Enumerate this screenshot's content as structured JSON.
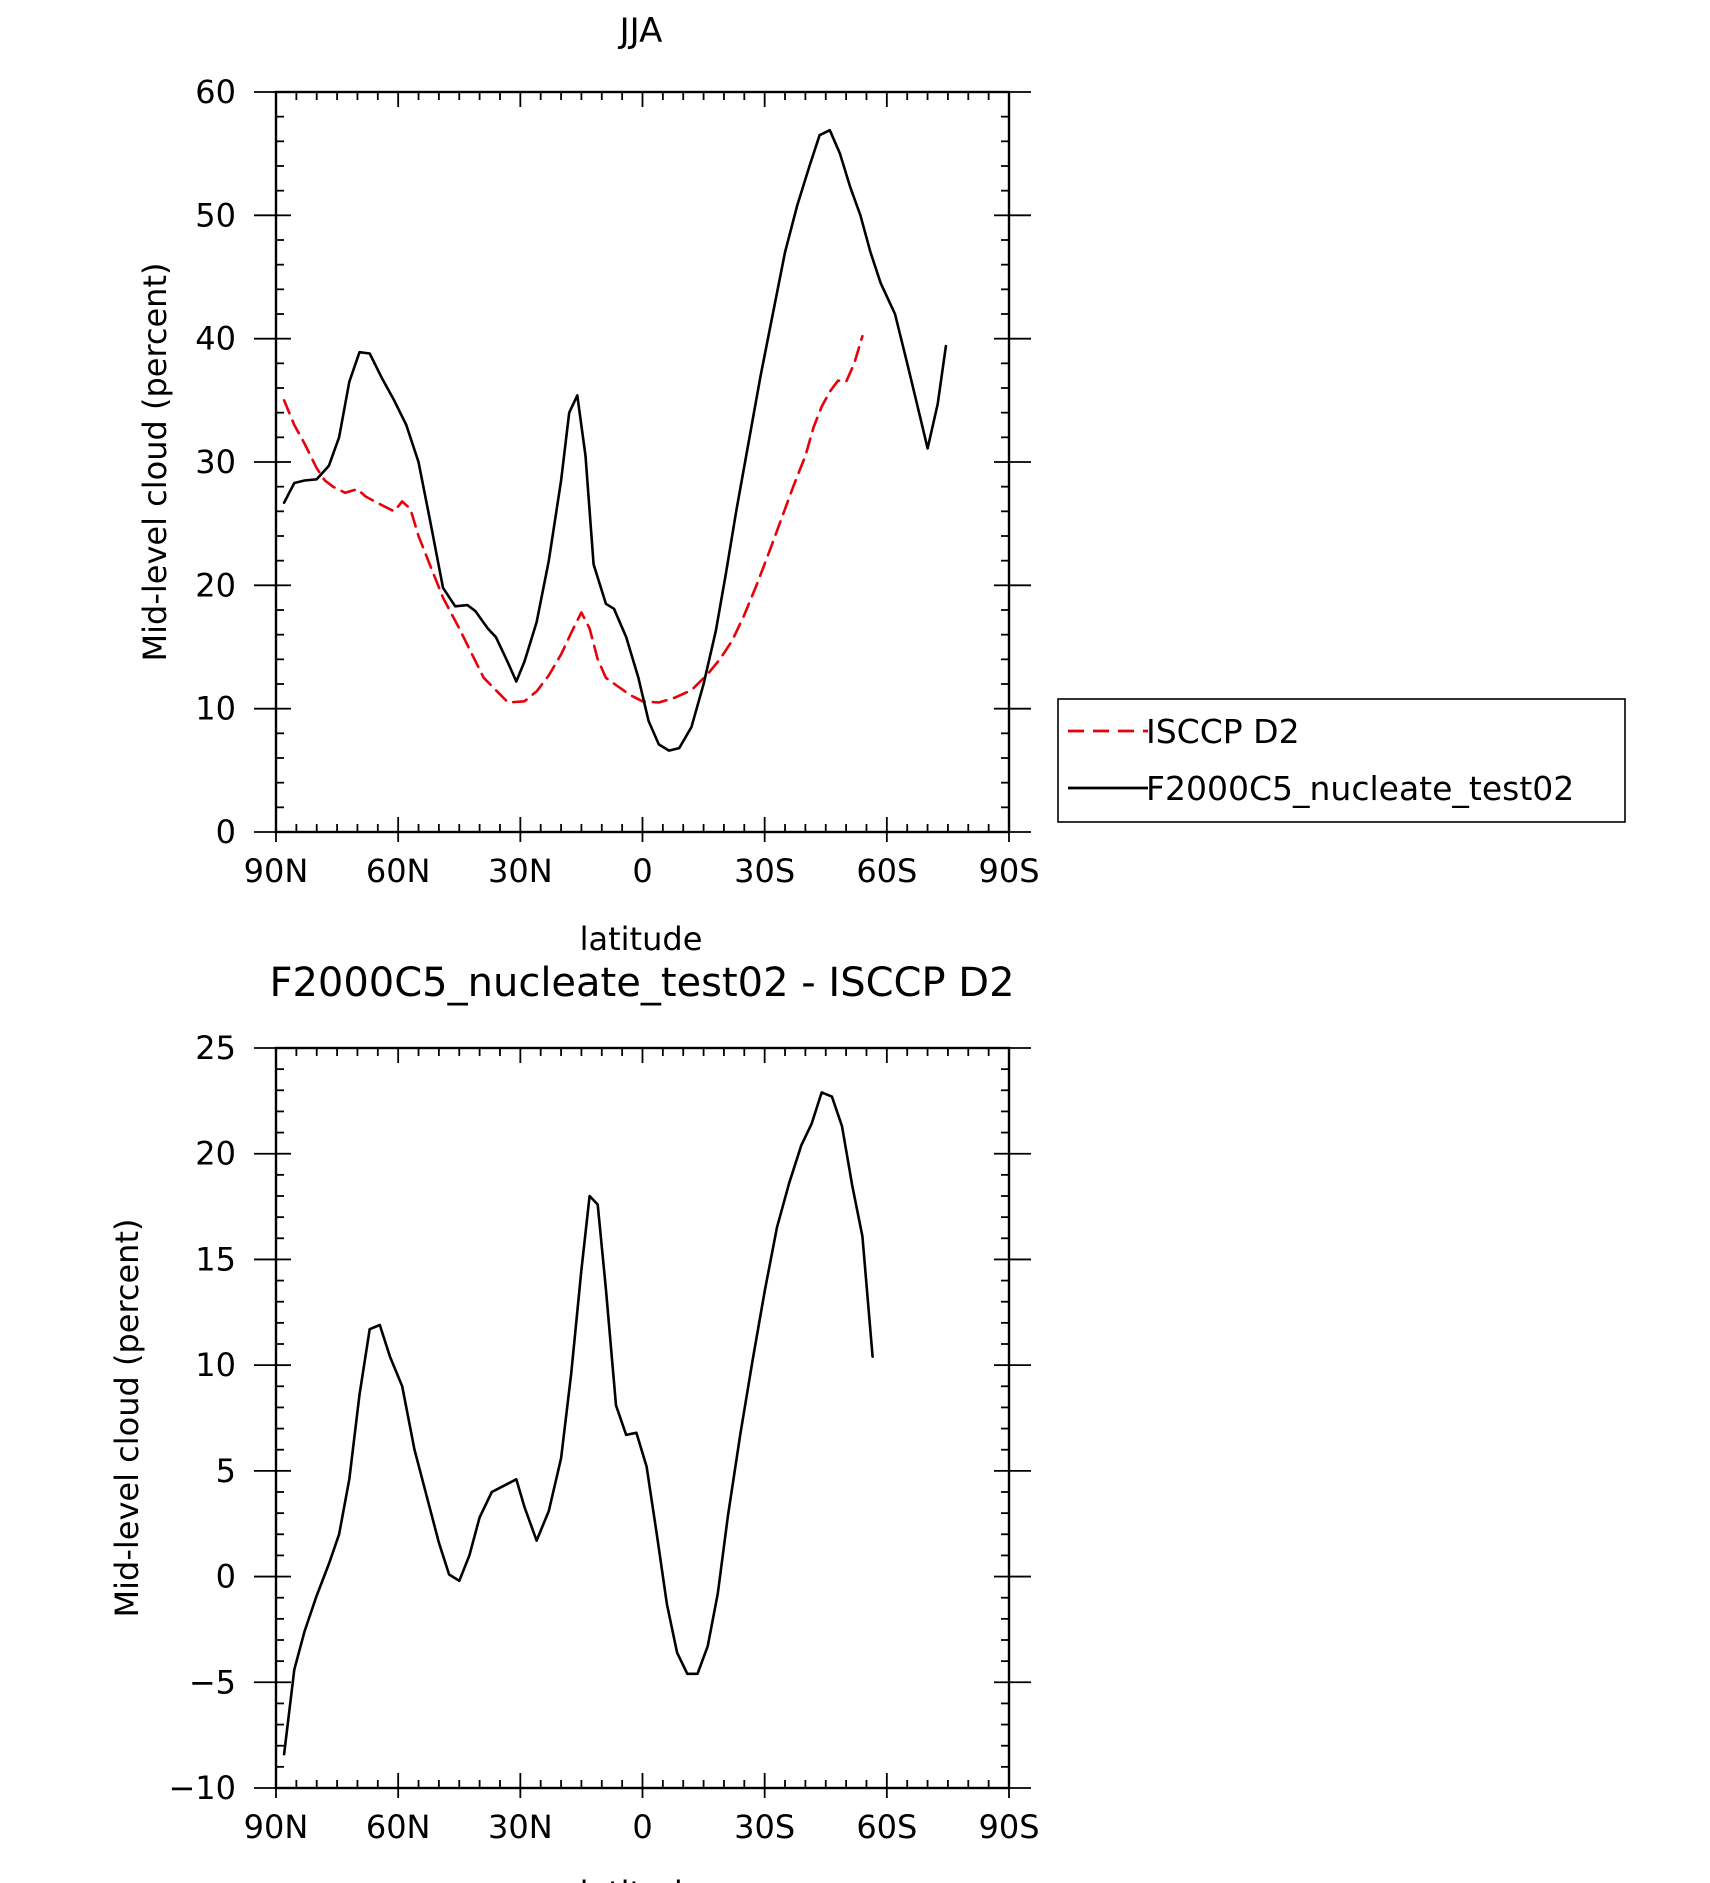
{
  "chart_data": [
    {
      "type": "line",
      "title": "JJA",
      "xlabel": "latitude",
      "ylabel": "Mid-level cloud (percent)",
      "xlim": [
        90,
        -90
      ],
      "ylim": [
        0,
        60
      ],
      "x_ticks": [
        90,
        60,
        30,
        0,
        -30,
        -60,
        -90
      ],
      "x_tick_labels": [
        "90N",
        "60N",
        "30N",
        "0",
        "30S",
        "60S",
        "90S"
      ],
      "y_ticks": [
        0,
        10,
        20,
        30,
        40,
        50,
        60
      ],
      "y_tick_labels": [
        "0",
        "10",
        "20",
        "30",
        "40",
        "50",
        "60"
      ],
      "grid": false,
      "legend": "right",
      "series": [
        {
          "name": "ISCCP D2",
          "color": "#e8000b",
          "dash": true,
          "points": [
            [
              88,
              35
            ],
            [
              85.5,
              33
            ],
            [
              83,
              31.5
            ],
            [
              80,
              29.5
            ],
            [
              78,
              28.5
            ],
            [
              76,
              28
            ],
            [
              73,
              27.5
            ],
            [
              70,
              27.8
            ],
            [
              68,
              27.2
            ],
            [
              64,
              26.5
            ],
            [
              61,
              26
            ],
            [
              59,
              26.8
            ],
            [
              57,
              26.2
            ],
            [
              55,
              24
            ],
            [
              52,
              21.5
            ],
            [
              49,
              19
            ],
            [
              45,
              16.5
            ],
            [
              42,
              14.5
            ],
            [
              39,
              12.5
            ],
            [
              36,
              11.5
            ],
            [
              33,
              10.5
            ],
            [
              29,
              10.6
            ],
            [
              26,
              11.4
            ],
            [
              23,
              12.7
            ],
            [
              20,
              14.4
            ],
            [
              17,
              16.5
            ],
            [
              15,
              17.8
            ],
            [
              13,
              16.5
            ],
            [
              11,
              14
            ],
            [
              9,
              12.5
            ],
            [
              6,
              11.8
            ],
            [
              3,
              11.1
            ],
            [
              0,
              10.6
            ],
            [
              -4,
              10.5
            ],
            [
              -8,
              10.9
            ],
            [
              -12,
              11.5
            ],
            [
              -16,
              12.8
            ],
            [
              -19,
              14
            ],
            [
              -22,
              15.5
            ],
            [
              -25,
              17.6
            ],
            [
              -28,
              20
            ],
            [
              -31,
              22.6
            ],
            [
              -34,
              25.3
            ],
            [
              -37,
              28
            ],
            [
              -40,
              30.5
            ],
            [
              -42,
              32.8
            ],
            [
              -44,
              34.5
            ],
            [
              -46,
              35.7
            ],
            [
              -48,
              36.6
            ],
            [
              -50,
              36.5
            ],
            [
              -52,
              38
            ],
            [
              -54,
              40.2
            ]
          ]
        },
        {
          "name": "F2000C5_nucleate_test02",
          "color": "#000000",
          "dash": false,
          "points": [
            [
              88,
              26.7
            ],
            [
              85.5,
              28.3
            ],
            [
              83,
              28.5
            ],
            [
              80,
              28.6
            ],
            [
              77,
              29.7
            ],
            [
              74.5,
              32
            ],
            [
              72,
              36.5
            ],
            [
              69.5,
              38.9
            ],
            [
              67,
              38.8
            ],
            [
              64,
              36.8
            ],
            [
              61,
              35
            ],
            [
              58,
              33
            ],
            [
              55,
              30
            ],
            [
              52,
              25
            ],
            [
              49,
              19.8
            ],
            [
              46,
              18.3
            ],
            [
              43,
              18.4
            ],
            [
              41,
              17.9
            ],
            [
              38,
              16.5
            ],
            [
              36,
              15.8
            ],
            [
              33,
              13.7
            ],
            [
              31,
              12.2
            ],
            [
              29,
              13.8
            ],
            [
              26,
              17
            ],
            [
              23,
              22
            ],
            [
              20,
              28.5
            ],
            [
              18,
              34
            ],
            [
              16,
              35.4
            ],
            [
              14,
              30.5
            ],
            [
              12,
              21.7
            ],
            [
              9,
              18.5
            ],
            [
              7,
              18.1
            ],
            [
              4,
              15.8
            ],
            [
              1,
              12.5
            ],
            [
              -1.5,
              9
            ],
            [
              -4,
              7.1
            ],
            [
              -6.5,
              6.6
            ],
            [
              -9,
              6.8
            ],
            [
              -12,
              8.5
            ],
            [
              -15,
              12
            ],
            [
              -18,
              16.3
            ],
            [
              -20.5,
              21
            ],
            [
              -23,
              26
            ],
            [
              -26,
              31.5
            ],
            [
              -29,
              37
            ],
            [
              -32,
              42
            ],
            [
              -35,
              47
            ],
            [
              -38,
              50.8
            ],
            [
              -41,
              54
            ],
            [
              -43.5,
              56.5
            ],
            [
              -46,
              56.9
            ],
            [
              -48.5,
              55
            ],
            [
              -51,
              52.3
            ],
            [
              -53.5,
              50
            ],
            [
              -56,
              47
            ],
            [
              -58.5,
              44.5
            ],
            [
              -62,
              42
            ],
            [
              -65,
              38
            ],
            [
              -68,
              33.9
            ],
            [
              -70,
              31.1
            ],
            [
              -72.5,
              34.7
            ],
            [
              -74.5,
              39.4
            ]
          ]
        }
      ]
    },
    {
      "type": "line",
      "title": "F2000C5_nucleate_test02 - ISCCP D2",
      "xlabel": "latitude",
      "ylabel": "Mid-level cloud (percent)",
      "xlim": [
        90,
        -90
      ],
      "ylim": [
        -10,
        25
      ],
      "x_ticks": [
        90,
        60,
        30,
        0,
        -30,
        -60,
        -90
      ],
      "x_tick_labels": [
        "90N",
        "60N",
        "30N",
        "0",
        "30S",
        "60S",
        "90S"
      ],
      "y_ticks": [
        -10,
        -5,
        0,
        5,
        10,
        15,
        20,
        25
      ],
      "y_tick_labels": [
        "−10",
        "−5",
        "0",
        "5",
        "10",
        "15",
        "20",
        "25"
      ],
      "grid": false,
      "series": [
        {
          "color": "#000000",
          "dash": false,
          "points": [
            [
              88,
              -8.4
            ],
            [
              85.5,
              -4.4
            ],
            [
              83,
              -2.6
            ],
            [
              80,
              -0.9
            ],
            [
              77,
              0.6
            ],
            [
              74.5,
              2
            ],
            [
              72,
              4.6
            ],
            [
              69.5,
              8.6
            ],
            [
              67,
              11.7
            ],
            [
              64.5,
              11.9
            ],
            [
              62,
              10.4
            ],
            [
              59,
              9
            ],
            [
              56,
              6
            ],
            [
              53,
              3.8
            ],
            [
              50,
              1.6
            ],
            [
              47.5,
              0.1
            ],
            [
              45,
              -0.2
            ],
            [
              42.5,
              1
            ],
            [
              40,
              2.8
            ],
            [
              37,
              4
            ],
            [
              34,
              4.3
            ],
            [
              31,
              4.6
            ],
            [
              29,
              3.3
            ],
            [
              26,
              1.7
            ],
            [
              23,
              3.1
            ],
            [
              20,
              5.6
            ],
            [
              17.5,
              9.6
            ],
            [
              15,
              14.5
            ],
            [
              13,
              18
            ],
            [
              11,
              17.6
            ],
            [
              9,
              13.6
            ],
            [
              6.5,
              8.1
            ],
            [
              4,
              6.7
            ],
            [
              1.5,
              6.8
            ],
            [
              -1,
              5.2
            ],
            [
              -3.5,
              2
            ],
            [
              -6,
              -1.3
            ],
            [
              -8.5,
              -3.6
            ],
            [
              -11,
              -4.6
            ],
            [
              -13.5,
              -4.6
            ],
            [
              -16,
              -3.3
            ],
            [
              -18.5,
              -0.8
            ],
            [
              -21,
              2.9
            ],
            [
              -24,
              6.7
            ],
            [
              -27,
              10.2
            ],
            [
              -30,
              13.5
            ],
            [
              -33,
              16.5
            ],
            [
              -36,
              18.6
            ],
            [
              -39,
              20.4
            ],
            [
              -41.5,
              21.4
            ],
            [
              -44,
              22.9
            ],
            [
              -46.5,
              22.7
            ],
            [
              -49,
              21.3
            ],
            [
              -51.5,
              18.5
            ],
            [
              -54,
              16.1
            ],
            [
              -56.5,
              10.4
            ]
          ]
        }
      ]
    }
  ]
}
